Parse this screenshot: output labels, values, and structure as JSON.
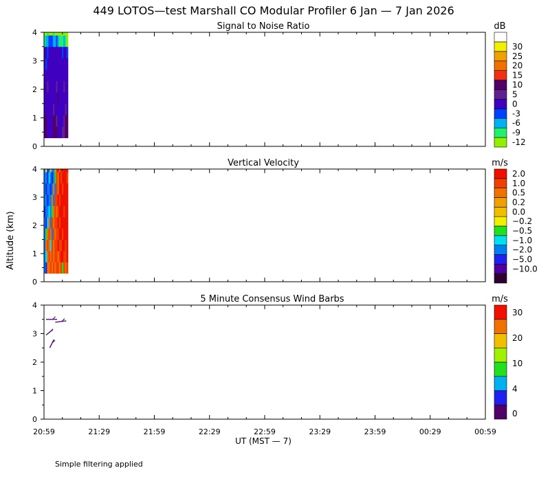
{
  "title": "449 LOTOS—test Marshall CO Modular Profiler  6 Jan —  7 Jan 2026",
  "footer_note": "Simple filtering applied",
  "y_axis_label": "Altitude (km)",
  "x_axis_label": "UT  (MST — 7)",
  "x_tick_labels": [
    "20:59",
    "21:29",
    "21:59",
    "22:29",
    "22:59",
    "23:29",
    "23:59",
    "00:29",
    "00:59"
  ],
  "y_tick_labels": [
    "0",
    "1",
    "2",
    "3",
    "4"
  ],
  "colors": {
    "snr": [
      "#90f000",
      "#20f070",
      "#00b0f0",
      "#0040ff",
      "#4000c0",
      "#602090",
      "#500068",
      "#f03010",
      "#f07000",
      "#f0a000",
      "#f0f000",
      "#ffffff"
    ],
    "vel": [
      "#300030",
      "#5000a0",
      "#2020f0",
      "#0080f0",
      "#00e0f0",
      "#20e020",
      "#f0f000",
      "#f0c000",
      "#f0a000",
      "#f07000",
      "#f04000",
      "#f01000"
    ],
    "wind": [
      "#500068",
      "#2020f0",
      "#00b0f0",
      "#20e020",
      "#a0f000",
      "#f0c000",
      "#f07000",
      "#f01000"
    ]
  },
  "chart_data": [
    {
      "type": "heatmap",
      "title": "Signal to Noise Ratio",
      "unit": "dB",
      "colorbar_labels": [
        "-12",
        "-9",
        "-6",
        "-3",
        "0",
        "5",
        "10",
        "15",
        "20",
        "25",
        "30"
      ],
      "x_range": [
        "20:59",
        "00:59"
      ],
      "ylim": [
        0,
        4
      ],
      "data_extent": {
        "x": [
          "20:59",
          "21:12"
        ],
        "y": [
          0.3,
          4.0
        ]
      },
      "rows": [
        {
          "alt": 0.3,
          "values": [
            10,
            10,
            2,
            2,
            0,
            0,
            10,
            10,
            10,
            2,
            2,
            0,
            5,
            5,
            10,
            10
          ]
        },
        {
          "alt": 0.7,
          "values": [
            10,
            10,
            2,
            0,
            0,
            2,
            10,
            10,
            5,
            2,
            0,
            0,
            2,
            5,
            10,
            10
          ]
        },
        {
          "alt": 1.1,
          "values": [
            2,
            2,
            0,
            0,
            2,
            2,
            5,
            2,
            2,
            0,
            0,
            2,
            2,
            2,
            5,
            2
          ]
        },
        {
          "alt": 1.5,
          "values": [
            2,
            0,
            0,
            2,
            2,
            0,
            0,
            2,
            2,
            10,
            2,
            0,
            0,
            2,
            2,
            2
          ]
        },
        {
          "alt": 1.9,
          "values": [
            2,
            2,
            5,
            2,
            2,
            2,
            2,
            2,
            5,
            2,
            2,
            2,
            2,
            5,
            2,
            2
          ]
        },
        {
          "alt": 2.3,
          "values": [
            0,
            2,
            2,
            2,
            0,
            2,
            2,
            2,
            2,
            2,
            2,
            0,
            2,
            2,
            2,
            0
          ]
        },
        {
          "alt": 2.7,
          "values": [
            0,
            -3,
            2,
            2,
            2,
            2,
            2,
            0,
            2,
            2,
            2,
            2,
            2,
            2,
            0,
            2
          ]
        },
        {
          "alt": 3.1,
          "values": [
            0,
            0,
            -3,
            2,
            2,
            0,
            0,
            0,
            2,
            2,
            0,
            0,
            -3,
            0,
            0,
            -3
          ]
        },
        {
          "alt": 3.5,
          "values": [
            -9,
            -6,
            -6,
            -3,
            -3,
            -3,
            -6,
            -6,
            -3,
            -6,
            -9,
            -9,
            -9,
            -6,
            -9,
            -12
          ]
        },
        {
          "alt": 3.9,
          "values": [
            -12,
            -12,
            -9,
            -12,
            -12,
            -12,
            -9,
            -12,
            -12,
            -12,
            -12,
            -12,
            -12,
            -12,
            -12,
            -12
          ]
        }
      ]
    },
    {
      "type": "heatmap",
      "title": "Vertical Velocity",
      "unit": "m/s",
      "colorbar_labels": [
        "2.0",
        "1.0",
        "0.5",
        "0.2",
        "0.0",
        "−0.2",
        "−0.5",
        "−1.0",
        "−2.0",
        "−5.0",
        "−10.0"
      ],
      "x_range": [
        "20:59",
        "00:59"
      ],
      "ylim": [
        0,
        4
      ],
      "data_extent": {
        "x": [
          "20:59",
          "21:12"
        ],
        "y": [
          0.3,
          4.0
        ]
      },
      "rows": [
        {
          "alt": 0.3,
          "values": [
            -2,
            -5,
            0.5,
            0.5,
            1,
            0.5,
            1,
            0.5,
            1,
            1,
            0.5,
            1,
            -0.5,
            1,
            0.5,
            1
          ]
        },
        {
          "alt": 0.7,
          "values": [
            -2,
            -1,
            0.5,
            1,
            0.5,
            1,
            0.5,
            1,
            1,
            0.5,
            1,
            2,
            2,
            1,
            1,
            2
          ]
        },
        {
          "alt": 1.1,
          "values": [
            -2,
            0.5,
            1,
            0.5,
            -1,
            1,
            0.5,
            1,
            1,
            2,
            1,
            1,
            2,
            2,
            1,
            2
          ]
        },
        {
          "alt": 1.5,
          "values": [
            -2,
            -0.5,
            0.5,
            1,
            0.5,
            -2,
            1,
            0.5,
            1,
            1,
            2,
            2,
            1,
            2,
            2,
            2
          ]
        },
        {
          "alt": 1.9,
          "values": [
            -2,
            -5,
            -1,
            0.5,
            -2,
            1,
            0.5,
            1,
            1,
            2,
            1,
            2,
            2,
            2,
            2,
            2
          ]
        },
        {
          "alt": 2.3,
          "values": [
            -5,
            -2,
            -2,
            -1,
            -2,
            -0.5,
            0.5,
            1,
            0.5,
            1,
            2,
            2,
            2,
            1,
            2,
            2
          ]
        },
        {
          "alt": 2.7,
          "values": [
            -2,
            -2,
            -5,
            -2,
            -2,
            0.5,
            -2,
            1,
            1,
            2,
            1,
            2,
            2,
            2,
            2,
            2
          ]
        },
        {
          "alt": 3.1,
          "values": [
            -2,
            -5,
            -2,
            -2,
            -5,
            -2,
            0.5,
            -2,
            1,
            0.5,
            2,
            2,
            1,
            2,
            2,
            2
          ]
        },
        {
          "alt": 3.5,
          "values": [
            -2,
            -2,
            -5,
            -1,
            -2,
            -5,
            -2,
            -0.5,
            1,
            0.5,
            2,
            1,
            2,
            2,
            2,
            1
          ]
        },
        {
          "alt": 3.9,
          "values": [
            -2,
            -0.2,
            -5,
            -2,
            0,
            -2,
            -2,
            0.2,
            1,
            2,
            0.5,
            2,
            1,
            2,
            2,
            2
          ]
        }
      ]
    },
    {
      "type": "scatter",
      "title": "5 Minute Consensus Wind Barbs",
      "unit": "m/s",
      "colorbar_labels": [
        "0",
        "4",
        "10",
        "20",
        "30"
      ],
      "x_range": [
        "20:59",
        "00:59"
      ],
      "ylim": [
        0,
        4
      ],
      "barbs": [
        {
          "time": "20:59",
          "alt": 3.5
        },
        {
          "time": "21:04",
          "alt": 3.4
        },
        {
          "time": "20:59",
          "alt": 2.95
        },
        {
          "time": "21:01",
          "alt": 2.5
        }
      ]
    }
  ]
}
